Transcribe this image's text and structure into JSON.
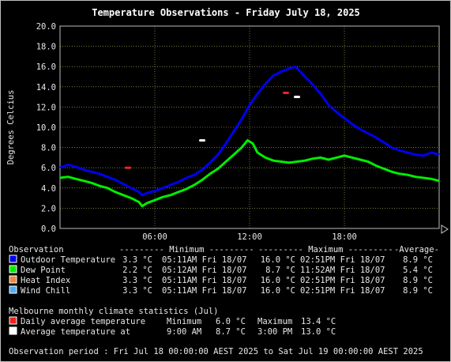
{
  "chart_data": {
    "type": "line",
    "title": "Temperature Observations - Friday July 18, 2025",
    "ylabel": "Degrees Celcius",
    "xlim": [
      0,
      24
    ],
    "ylim": [
      0,
      20
    ],
    "y_ticks": [
      "0.0",
      "2.0",
      "4.0",
      "6.0",
      "8.0",
      "10.0",
      "12.0",
      "14.0",
      "16.0",
      "18.0",
      "20.0"
    ],
    "x_ticks": [
      {
        "h": 6,
        "label": "06:00"
      },
      {
        "h": 12,
        "label": "12:00"
      },
      {
        "h": 18,
        "label": "18:00"
      }
    ],
    "grid": true,
    "series": [
      {
        "key": "outdoor_temperature",
        "color": "#0000ee",
        "x": [
          0,
          0.5,
          1,
          1.5,
          2,
          2.5,
          3,
          3.5,
          4,
          4.5,
          5,
          5.2,
          5.5,
          6,
          6.5,
          7,
          7.5,
          8,
          8.5,
          9,
          9.5,
          10,
          10.5,
          11,
          11.5,
          12,
          12.5,
          13,
          13.5,
          14,
          14.5,
          14.87,
          15.2,
          15.5,
          16,
          16.5,
          17,
          17.5,
          18,
          18.5,
          19,
          19.5,
          20,
          20.5,
          21,
          21.5,
          22,
          22.5,
          23,
          23.5,
          24
        ],
        "y": [
          6.0,
          6.3,
          6.1,
          5.8,
          5.6,
          5.4,
          5.1,
          4.8,
          4.4,
          4.0,
          3.6,
          3.3,
          3.5,
          3.7,
          4.0,
          4.3,
          4.6,
          5.0,
          5.3,
          5.8,
          6.5,
          7.3,
          8.4,
          9.6,
          10.8,
          12.2,
          13.3,
          14.3,
          15.1,
          15.5,
          15.8,
          16.0,
          15.5,
          15.0,
          14.2,
          13.3,
          12.2,
          11.5,
          10.9,
          10.3,
          9.8,
          9.4,
          9.0,
          8.5,
          8.0,
          7.7,
          7.5,
          7.3,
          7.2,
          7.5,
          7.3
        ]
      },
      {
        "key": "dew_point",
        "color": "#00ee00",
        "x": [
          0,
          0.5,
          1,
          1.5,
          2,
          2.5,
          3,
          3.5,
          4,
          4.5,
          5,
          5.2,
          5.5,
          6,
          6.5,
          7,
          7.5,
          8,
          8.5,
          9,
          9.5,
          10,
          10.5,
          11,
          11.5,
          11.87,
          12.2,
          12.5,
          13,
          13.5,
          14,
          14.5,
          15,
          15.5,
          16,
          16.5,
          17,
          17.5,
          18,
          18.5,
          19,
          19.5,
          20,
          20.5,
          21,
          21.5,
          22,
          22.5,
          23,
          23.5,
          24
        ],
        "y": [
          5.0,
          5.1,
          4.9,
          4.7,
          4.5,
          4.2,
          4.0,
          3.6,
          3.3,
          3.0,
          2.6,
          2.2,
          2.5,
          2.8,
          3.1,
          3.3,
          3.6,
          3.9,
          4.3,
          4.8,
          5.4,
          5.9,
          6.6,
          7.3,
          8.0,
          8.7,
          8.4,
          7.5,
          7.0,
          6.7,
          6.6,
          6.5,
          6.6,
          6.7,
          6.9,
          7.0,
          6.8,
          7.0,
          7.2,
          7.0,
          6.8,
          6.6,
          6.2,
          5.9,
          5.6,
          5.4,
          5.3,
          5.1,
          5.0,
          4.9,
          4.7
        ]
      }
    ],
    "climate_markers": [
      {
        "kind": "daily-average-min",
        "x": 4.3,
        "y": 6.0,
        "color": "#ee2222"
      },
      {
        "kind": "daily-average-max",
        "x": 14.3,
        "y": 13.4,
        "color": "#ee2222"
      },
      {
        "kind": "average-at-time",
        "x": 9.0,
        "y": 8.7,
        "color": "#ffffff"
      },
      {
        "kind": "average-at-time",
        "x": 15.0,
        "y": 13.0,
        "color": "#ffffff"
      }
    ]
  },
  "legend": {
    "header": {
      "observation": "Observation",
      "minimum": "--------- Minimum ---------",
      "maximum": "--------- Maximum ---------",
      "average": "-Average-"
    },
    "rows": [
      {
        "name": "Outdoor Temperature",
        "color": "#0000ee",
        "min": "3.3 °C",
        "min_time": "05:11AM Fri 18/07",
        "max": "16.0 °C",
        "max_time": "02:51PM Fri 18/07",
        "avg": "8.9 °C"
      },
      {
        "name": "Dew Point",
        "color": "#00ee00",
        "min": "2.2 °C",
        "min_time": "05:12AM Fri 18/07",
        "max": "8.7 °C",
        "max_time": "11:52AM Fri 18/07",
        "avg": "5.4 °C"
      },
      {
        "name": "Heat Index",
        "color": "#ee8844",
        "min": "3.3 °C",
        "min_time": "05:11AM Fri 18/07",
        "max": "16.0 °C",
        "max_time": "02:51PM Fri 18/07",
        "avg": "8.9 °C"
      },
      {
        "name": "Wind Chill",
        "color": "#55aaee",
        "min": "3.3 °C",
        "min_time": "05:11AM Fri 18/07",
        "max": "16.0 °C",
        "max_time": "02:51PM Fri 18/07",
        "avg": "8.9 °C"
      }
    ]
  },
  "climate": {
    "title": "Melbourne monthly climate statistics (Jul)",
    "daily_avg": {
      "label": "Daily average temperature",
      "color": "#ee2222",
      "min_label": "Minimum",
      "min": "6.0 °C",
      "max_label": "Maximum",
      "max": "13.4 °C"
    },
    "avg_at": {
      "label": "Average temperature at",
      "color": "#ffffff",
      "time1": "9:00 AM",
      "val1": "8.7 °C",
      "time2": "3:00 PM",
      "val2": "13.0 °C"
    }
  },
  "period": "Observation period : Fri Jul 18 00:00:00 AEST 2025 to Sat Jul 19 00:00:00 AEST 2025"
}
